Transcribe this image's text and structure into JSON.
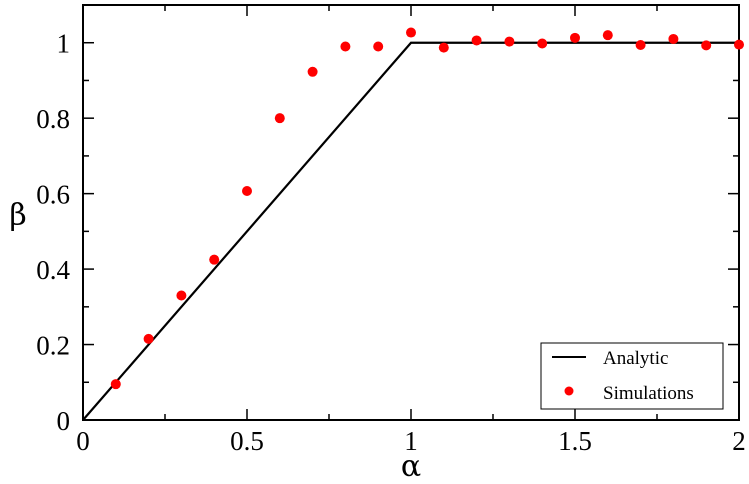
{
  "chart_data": {
    "type": "scatter",
    "xlabel": "α",
    "ylabel": "β",
    "xlim": [
      0,
      2
    ],
    "ylim": [
      0,
      1.1
    ],
    "x_ticks": [
      0,
      0.5,
      1,
      1.5,
      2
    ],
    "x_tick_labels": [
      "0",
      "0.5",
      "1",
      "1.5",
      "2"
    ],
    "y_ticks": [
      0,
      0.2,
      0.4,
      0.6,
      0.8,
      1
    ],
    "y_tick_labels": [
      "0",
      "0.2",
      "0.4",
      "0.6",
      "0.8",
      "1"
    ],
    "grid": false,
    "legend_position": "bottom-right",
    "series": [
      {
        "name": "Analytic",
        "kind": "line",
        "color": "#000000",
        "x": [
          0,
          1,
          2
        ],
        "y": [
          0,
          1,
          1
        ]
      },
      {
        "name": "Simulations",
        "kind": "scatter",
        "color": "#ff0000",
        "x": [
          0.1,
          0.2,
          0.3,
          0.4,
          0.5,
          0.6,
          0.7,
          0.8,
          0.9,
          1.0,
          1.1,
          1.2,
          1.3,
          1.4,
          1.5,
          1.6,
          1.7,
          1.8,
          1.9,
          2.0
        ],
        "y": [
          0.095,
          0.215,
          0.33,
          0.425,
          0.607,
          0.8,
          0.923,
          0.99,
          0.99,
          1.027,
          0.987,
          1.006,
          1.003,
          0.998,
          1.013,
          1.02,
          0.994,
          1.01,
          0.993,
          0.995
        ]
      }
    ]
  }
}
